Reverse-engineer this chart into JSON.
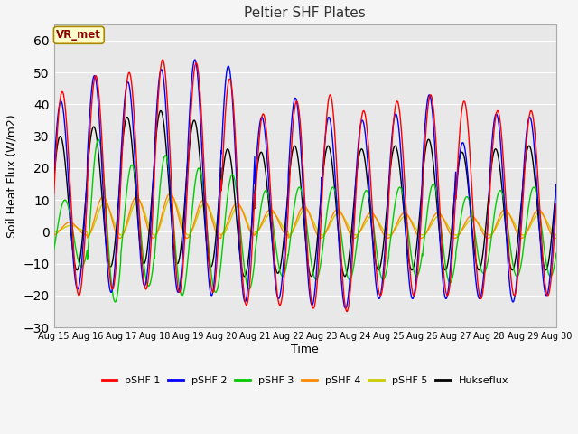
{
  "title": "Peltier SHF Plates",
  "xlabel": "Time",
  "ylabel": "Soil Heat Flux (W/m2)",
  "ylim": [
    -30,
    65
  ],
  "xlim": [
    0,
    15
  ],
  "yticks": [
    -30,
    -20,
    -10,
    0,
    10,
    20,
    30,
    40,
    50,
    60
  ],
  "xtick_labels": [
    "Aug 15",
    "Aug 16",
    "Aug 17",
    "Aug 18",
    "Aug 19",
    "Aug 20",
    "Aug 21",
    "Aug 22",
    "Aug 23",
    "Aug 24",
    "Aug 25",
    "Aug 26",
    "Aug 27",
    "Aug 28",
    "Aug 29",
    "Aug 30"
  ],
  "n_days": 15,
  "fig_bg": "#f5f5f5",
  "plot_bg": "#e8e8e8",
  "grid_color": "#ffffff",
  "annotation_text": "VR_met",
  "annotation_bg": "#ffffcc",
  "annotation_border": "#aa8800",
  "annotation_text_color": "#880000",
  "p1_max": [
    44,
    49,
    50,
    54,
    53,
    48,
    37,
    41,
    43,
    38,
    41,
    43,
    41,
    38,
    38
  ],
  "p1_min": [
    -20,
    -18,
    -18,
    -19,
    -19,
    -23,
    -23,
    -24,
    -25,
    -20,
    -20,
    -20,
    -21,
    -20,
    -20
  ],
  "p2_max": [
    41,
    49,
    47,
    51,
    54,
    52,
    36,
    42,
    36,
    35,
    37,
    43,
    28,
    37,
    36
  ],
  "p2_min": [
    -18,
    -19,
    -17,
    -19,
    -20,
    -22,
    -21,
    -23,
    -24,
    -21,
    -21,
    -21,
    -21,
    -22,
    -20
  ],
  "p3_max": [
    10,
    29,
    21,
    24,
    20,
    18,
    13,
    14,
    14,
    13,
    14,
    15,
    11,
    13,
    14
  ],
  "p3_min": [
    -11,
    -22,
    -17,
    -20,
    -19,
    -18,
    -14,
    -15,
    -15,
    -15,
    -14,
    -16,
    -13,
    -14,
    -14
  ],
  "p4_max": [
    3,
    11,
    11,
    12,
    10,
    9,
    7,
    8,
    7,
    6,
    6,
    6,
    5,
    7,
    7
  ],
  "p4_min": [
    -1,
    -2,
    -2,
    -2,
    -2,
    -1,
    -1,
    -2,
    -2,
    -2,
    -2,
    -2,
    -2,
    -2,
    -2
  ],
  "p5_max": [
    2,
    9,
    10,
    11,
    9,
    8,
    6,
    7,
    6,
    5,
    5,
    5,
    4,
    6,
    6
  ],
  "p5_min": [
    0,
    -1,
    -1,
    -1,
    -1,
    -1,
    0,
    -1,
    -1,
    -1,
    -1,
    -1,
    -1,
    -1,
    -1
  ],
  "huk_max": [
    30,
    33,
    36,
    38,
    35,
    26,
    25,
    27,
    27,
    26,
    27,
    29,
    25,
    26,
    27
  ],
  "huk_min": [
    -12,
    -11,
    -10,
    -10,
    -11,
    -14,
    -13,
    -14,
    -14,
    -12,
    -12,
    -12,
    -12,
    -12,
    -12
  ],
  "colors": {
    "pSHF1": "#ff0000",
    "pSHF2": "#0000ff",
    "pSHF3": "#00cc00",
    "pSHF4": "#ff8800",
    "pSHF5": "#cccc00",
    "Hukseflux": "#000000"
  },
  "phases": {
    "pSHF1": 0.0,
    "pSHF2": 0.04,
    "pSHF3": -0.08,
    "pSHF4": -0.22,
    "pSHF5": -0.26,
    "Hukseflux": 0.06
  }
}
